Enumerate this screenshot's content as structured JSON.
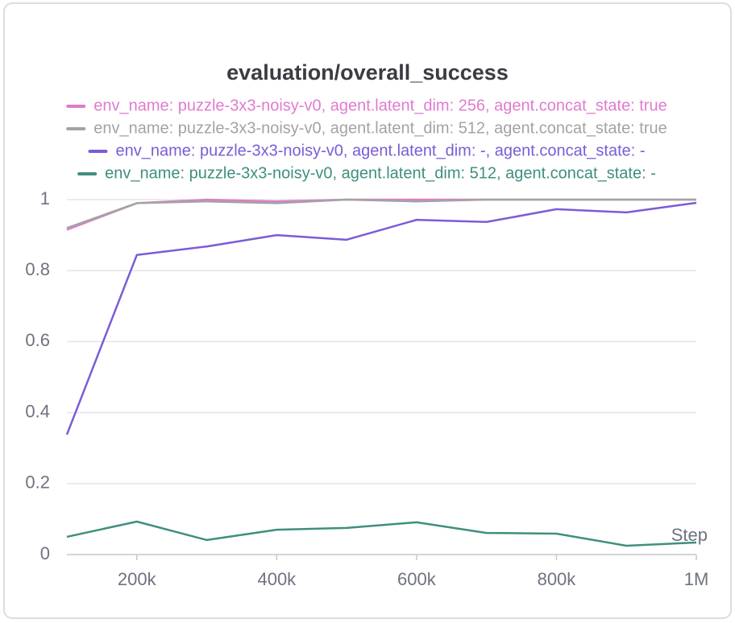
{
  "chart_data": {
    "type": "line",
    "title": "evaluation/overall_success",
    "xlabel": "Step",
    "x": [
      100000,
      200000,
      300000,
      400000,
      500000,
      600000,
      700000,
      800000,
      900000,
      1000000
    ],
    "series": [
      {
        "name": "env_name: puzzle-3x3-noisy-v0, agent.latent_dim: 256, agent.concat_state: true",
        "color": "#e07bcf",
        "values": [
          0.915,
          0.99,
          1.0,
          0.995,
          1.0,
          1.0,
          1.0,
          1.0,
          1.0,
          1.0
        ]
      },
      {
        "name": "env_name: puzzle-3x3-noisy-v0, agent.latent_dim: 512, agent.concat_state: true",
        "color": "#a3a3a3",
        "values": [
          0.92,
          0.99,
          0.995,
          0.99,
          1.0,
          0.995,
          1.0,
          1.0,
          1.0,
          1.0
        ]
      },
      {
        "name": "env_name: puzzle-3x3-noisy-v0, agent.latent_dim: -, agent.concat_state: -",
        "color": "#7b5cd6",
        "values": [
          0.338,
          0.844,
          0.868,
          0.9,
          0.887,
          0.943,
          0.937,
          0.973,
          0.964,
          0.991
        ]
      },
      {
        "name": "env_name: puzzle-3x3-noisy-v0, agent.latent_dim: 512, agent.concat_state: -",
        "color": "#3f8f7e",
        "values": [
          0.05,
          0.093,
          0.041,
          0.07,
          0.075,
          0.091,
          0.061,
          0.059,
          0.025,
          0.034
        ]
      }
    ],
    "xlim": [
      100000,
      1000000
    ],
    "xticks": [
      {
        "value": 200000,
        "label": "200k"
      },
      {
        "value": 400000,
        "label": "400k"
      },
      {
        "value": 600000,
        "label": "600k"
      },
      {
        "value": 800000,
        "label": "800k"
      },
      {
        "value": 1000000,
        "label": "1M"
      }
    ],
    "ylim": [
      0,
      1
    ],
    "yticks": [
      0,
      0.2,
      0.4,
      0.6,
      0.8,
      1
    ],
    "grid": true
  }
}
